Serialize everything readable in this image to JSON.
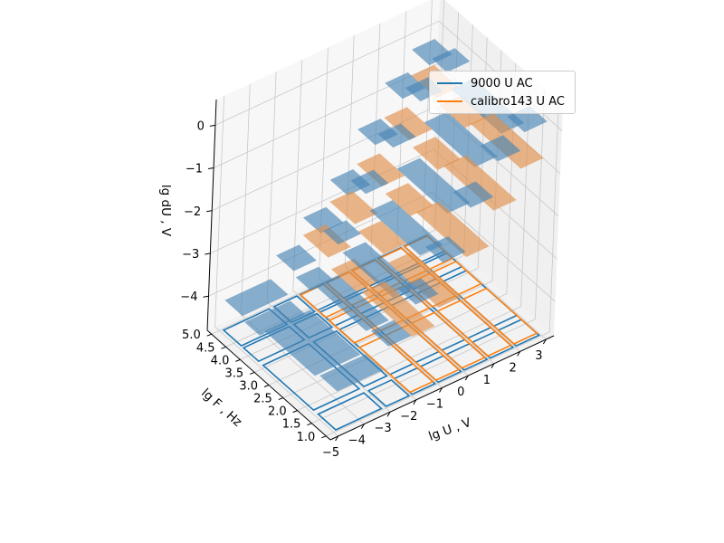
{
  "chart_data": {
    "type": "3d-surface",
    "xlabel": "lg U , V",
    "ylabel": "lg F , Hz",
    "zlabel": "lg dU , V",
    "xticks": [
      "−5",
      "−4",
      "−3",
      "−2",
      "−1",
      "0",
      "1",
      "2",
      "3"
    ],
    "yticks": [
      "1.0",
      "1.5",
      "2.0",
      "2.5",
      "3.0",
      "3.5",
      "4.0",
      "4.5",
      "5.0"
    ],
    "zticks": [
      "−4",
      "−3",
      "−2",
      "−1",
      "0"
    ],
    "xlim": [
      -5.3,
      3.3
    ],
    "ylim": [
      0.85,
      5.15
    ],
    "zlim": [
      -4.8,
      0.6
    ],
    "grid": true,
    "legend_position": "top-right",
    "series": [
      {
        "name": "9000 U AC",
        "color": "#1f77b4",
        "patch_color": "#4a86b5",
        "u_bounds": [
          -5,
          -3,
          -2,
          -1,
          0,
          1,
          2,
          3
        ],
        "f_bounds": [
          1.0,
          1.7,
          3.7,
          4.3,
          5.0
        ],
        "dU": [
          [
            -3.9,
            -3.4,
            -2.7,
            -2.0,
            -1.0,
            -0.2,
            0.2
          ],
          [
            -4.0,
            -3.5,
            -3.0,
            -2.3,
            -1.6,
            -0.8,
            -0.3
          ],
          [
            -4.2,
            -3.7,
            -2.9,
            -2.0,
            -1.2,
            -0.4,
            0.0
          ],
          [
            -4.1,
            -3.6,
            -3.0,
            -2.4,
            -1.5,
            -0.7,
            -0.2
          ]
        ]
      },
      {
        "name": "calibro143 U AC",
        "color": "#ff7f0e",
        "patch_color": "#e0904b",
        "u_bounds": [
          -2,
          -1,
          0,
          1,
          2,
          3
        ],
        "f_bounds": [
          1.0,
          3.0,
          4.0,
          5.0
        ],
        "dU": [
          [
            -3.5,
            -3.1,
            -2.2,
            -1.4,
            -0.7
          ],
          [
            -3.6,
            -3.0,
            -2.4,
            -1.6,
            -0.9
          ],
          [
            -3.4,
            -2.9,
            -2.3,
            -1.5,
            -0.8
          ]
        ]
      }
    ]
  }
}
